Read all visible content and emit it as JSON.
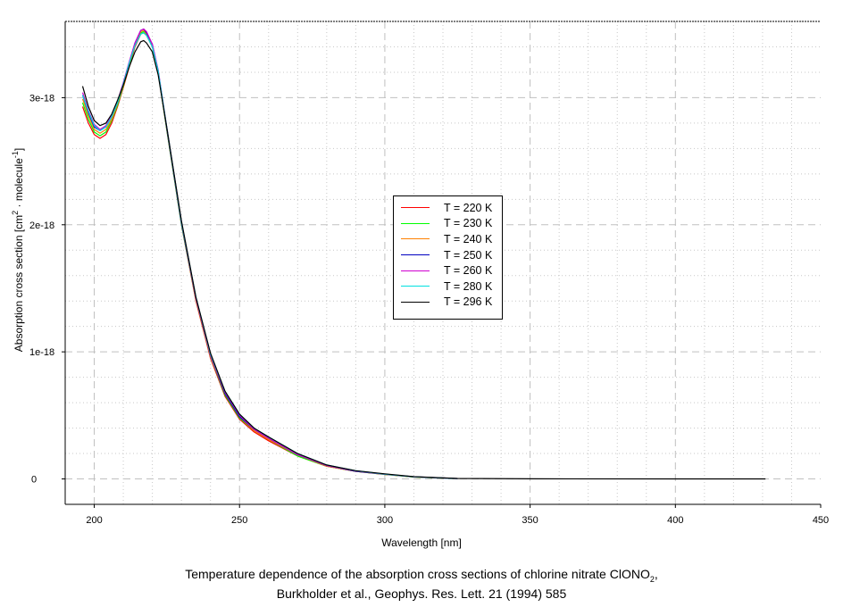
{
  "chart_data": {
    "type": "line",
    "title": "Temperature dependence of the absorption cross sections of chlorine nitrate ClONO",
    "title_sub": "2",
    "title_suffix": ",",
    "subtitle": "Burkholder et al., Geophys. Res. Lett. 21 (1994) 585",
    "xlabel": "Wavelength [nm]",
    "ylabel": {
      "main": "Absorption cross section [cm",
      "sup1": "2",
      "mid": " · molecule",
      "sup2": "-1",
      "end": "]"
    },
    "xlim": [
      190,
      450
    ],
    "ylim": [
      -2e-19,
      3.6e-18
    ],
    "x_ticks": [
      200,
      250,
      300,
      350,
      400,
      450
    ],
    "y_ticks": [
      {
        "value": 0,
        "label": "0"
      },
      {
        "value": 1e-18,
        "label": "1e-18"
      },
      {
        "value": 2e-18,
        "label": "2e-18"
      },
      {
        "value": 3e-18,
        "label": "3e-18"
      }
    ],
    "grid": {
      "major": "dashed",
      "minor": "dotted",
      "x_minor_step": 10,
      "y_minor_step": 2e-19
    },
    "legend_position": "center",
    "y_unit_scale": 1e-18,
    "x": [
      196,
      198,
      200,
      202,
      204,
      206,
      208,
      210,
      212,
      214,
      216,
      217,
      218,
      220,
      222,
      225,
      230,
      235,
      240,
      245,
      250,
      255,
      260,
      270,
      280,
      290,
      300,
      310,
      325
    ],
    "series": [
      {
        "name": "T = 220 K",
        "color": "#ff0000",
        "values": [
          2.93,
          2.8,
          2.71,
          2.68,
          2.71,
          2.8,
          2.93,
          3.08,
          3.24,
          3.4,
          3.5,
          3.51,
          3.49,
          3.4,
          3.2,
          2.74,
          2.0,
          1.4,
          0.95,
          0.65,
          0.47,
          0.37,
          0.3,
          0.18,
          0.1,
          0.06,
          0.035,
          0.015,
          0.003
        ]
      },
      {
        "name": "T = 230 K",
        "color": "#00ff00",
        "values": [
          2.96,
          2.83,
          2.73,
          2.7,
          2.73,
          2.82,
          2.94,
          3.09,
          3.25,
          3.41,
          3.51,
          3.52,
          3.5,
          3.4,
          3.2,
          2.74,
          2.0,
          1.41,
          0.96,
          0.66,
          0.48,
          0.38,
          0.31,
          0.18,
          0.1,
          0.06,
          0.035,
          0.015,
          0.003
        ]
      },
      {
        "name": "T = 240 K",
        "color": "#ff8000",
        "values": [
          2.99,
          2.86,
          2.75,
          2.72,
          2.75,
          2.83,
          2.95,
          3.1,
          3.26,
          3.42,
          3.52,
          3.53,
          3.5,
          3.41,
          3.21,
          2.75,
          2.01,
          1.41,
          0.96,
          0.67,
          0.49,
          0.38,
          0.31,
          0.19,
          0.1,
          0.06,
          0.036,
          0.016,
          0.003
        ]
      },
      {
        "name": "T = 250 K",
        "color": "#0000c0",
        "values": [
          3.02,
          2.88,
          2.77,
          2.74,
          2.77,
          2.85,
          2.96,
          3.11,
          3.27,
          3.43,
          3.53,
          3.54,
          3.51,
          3.42,
          3.21,
          2.75,
          2.01,
          1.42,
          0.97,
          0.67,
          0.49,
          0.39,
          0.32,
          0.19,
          0.105,
          0.06,
          0.037,
          0.016,
          0.003
        ]
      },
      {
        "name": "T = 260 K",
        "color": "#d000d0",
        "values": [
          3.04,
          2.9,
          2.79,
          2.75,
          2.78,
          2.86,
          2.97,
          3.12,
          3.28,
          3.43,
          3.53,
          3.54,
          3.52,
          3.42,
          3.22,
          2.76,
          2.02,
          1.42,
          0.97,
          0.68,
          0.5,
          0.39,
          0.32,
          0.19,
          0.105,
          0.062,
          0.037,
          0.017,
          0.003
        ]
      },
      {
        "name": "T = 280 K",
        "color": "#00e0e0",
        "values": [
          3.02,
          2.89,
          2.78,
          2.74,
          2.77,
          2.85,
          2.96,
          3.11,
          3.27,
          3.41,
          3.5,
          3.51,
          3.49,
          3.4,
          3.21,
          2.76,
          2.02,
          1.43,
          0.98,
          0.69,
          0.51,
          0.4,
          0.33,
          0.2,
          0.11,
          0.064,
          0.038,
          0.017,
          0.003
        ]
      },
      {
        "name": "T = 296 K",
        "color": "#000000",
        "x": [
          196,
          198,
          200,
          202,
          204,
          206,
          208,
          210,
          212,
          214,
          216,
          217,
          218,
          220,
          222,
          225,
          230,
          235,
          240,
          245,
          250,
          255,
          260,
          270,
          280,
          290,
          300,
          310,
          325,
          350,
          400,
          431
        ],
        "values": [
          3.09,
          2.93,
          2.82,
          2.78,
          2.8,
          2.87,
          2.98,
          3.1,
          3.24,
          3.36,
          3.44,
          3.45,
          3.43,
          3.36,
          3.18,
          2.76,
          2.03,
          1.43,
          0.99,
          0.69,
          0.51,
          0.4,
          0.33,
          0.2,
          0.11,
          0.065,
          0.04,
          0.018,
          0.004,
          0.001,
          0,
          0
        ]
      }
    ]
  }
}
